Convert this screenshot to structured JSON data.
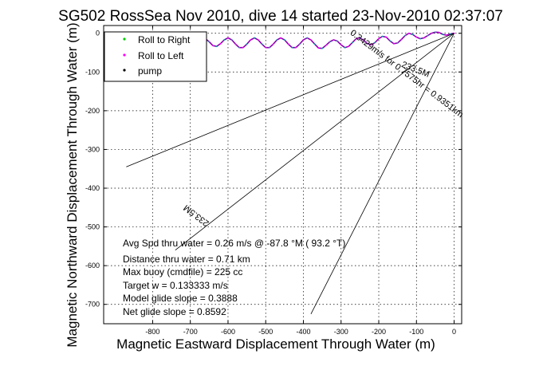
{
  "chart_data": {
    "type": "line",
    "title": "SG502 RossSea Nov 2010, dive 14 started 23-Nov-2010 02:37:07",
    "xlabel": "Magnetic Eastward Displacement Through Water (m)",
    "ylabel": "Magnetic Northward Displacement Through Water (m)",
    "xlim": [
      -930,
      20
    ],
    "ylim": [
      -750,
      20
    ],
    "xticks": [
      -800,
      -700,
      -600,
      -500,
      -400,
      -300,
      -200,
      -100,
      0
    ],
    "yticks": [
      0,
      -100,
      -200,
      -300,
      -400,
      -500,
      -600,
      -700
    ],
    "grid": true,
    "legend_position": "top-left",
    "legend": [
      {
        "label": "Roll to Right",
        "color": "#00cc00",
        "marker": "dot"
      },
      {
        "label": "Roll to Left",
        "color": "#ff00ff",
        "marker": "dot"
      },
      {
        "label": "pump",
        "color": "#000000",
        "marker": "dot"
      }
    ],
    "series": [
      {
        "kind": "track",
        "x": [
          0,
          -10,
          -20,
          -30,
          -40,
          -50,
          -60,
          -70,
          -80,
          -90,
          -100,
          -110,
          -120,
          -130,
          -140,
          -150,
          -160,
          -170,
          -180,
          -190,
          -200,
          -210,
          -220,
          -230,
          -240,
          -250,
          -260,
          -270,
          -280,
          -290,
          -300,
          -310,
          -320,
          -330,
          -340,
          -350,
          -360,
          -370,
          -380,
          -390,
          -400,
          -410,
          -420,
          -430,
          -440,
          -450,
          -460,
          -470,
          -480,
          -490,
          -500,
          -510,
          -520,
          -530,
          -540,
          -550,
          -560,
          -570,
          -580,
          -590,
          -600,
          -610,
          -620,
          -630,
          -640,
          -650,
          -660,
          -670,
          -680,
          -690,
          -700
        ],
        "y": [
          0,
          -2,
          -5,
          -3,
          2,
          3,
          0,
          -6,
          -12,
          -14,
          -10,
          -3,
          0,
          -6,
          -16,
          -25,
          -27,
          -20,
          -10,
          -8,
          -14,
          -24,
          -30,
          -27,
          -18,
          -12,
          -14,
          -24,
          -34,
          -37,
          -30,
          -20,
          -17,
          -22,
          -31,
          -39,
          -38,
          -28,
          -17,
          -12,
          -17,
          -28,
          -37,
          -37,
          -28,
          -17,
          -12,
          -17,
          -28,
          -37,
          -37,
          -28,
          -17,
          -12,
          -17,
          -28,
          -37,
          -37,
          -28,
          -17,
          -12,
          -17,
          -27,
          -34,
          -32,
          -22,
          -14,
          -12,
          -18,
          -25,
          -26
        ]
      },
      {
        "kind": "line",
        "x": [
          0,
          -740
        ],
        "y": [
          0,
          -560
        ]
      },
      {
        "kind": "line",
        "x": [
          0,
          -870
        ],
        "y": [
          0,
          -345
        ]
      },
      {
        "kind": "line",
        "x": [
          0,
          -380
        ],
        "y": [
          0,
          -725
        ]
      }
    ],
    "annotations": [
      {
        "text": "233.5M",
        "x": -105,
        "y": -100,
        "rotate_deg": 21.6
      },
      {
        "text": "0.3429m/s for 0.7575hr = 0.9351km",
        "x": -130,
        "y": -110,
        "rotate_deg": 37.1
      },
      {
        "text": "233.5M",
        "x": -680,
        "y": -465,
        "rotate_deg": -142.9
      }
    ],
    "info_lines": [
      "Avg Spd thru water =  0.26 m/s @ -87.8    °M ( 93.2 °T)",
      "Distance thru water =  0.71 km",
      "Max buoy (cmdfile) = 225 cc",
      "Target w = 0.133333 m/s",
      "Model glide slope = 0.3888",
      "Net glide slope = 0.8592"
    ]
  }
}
